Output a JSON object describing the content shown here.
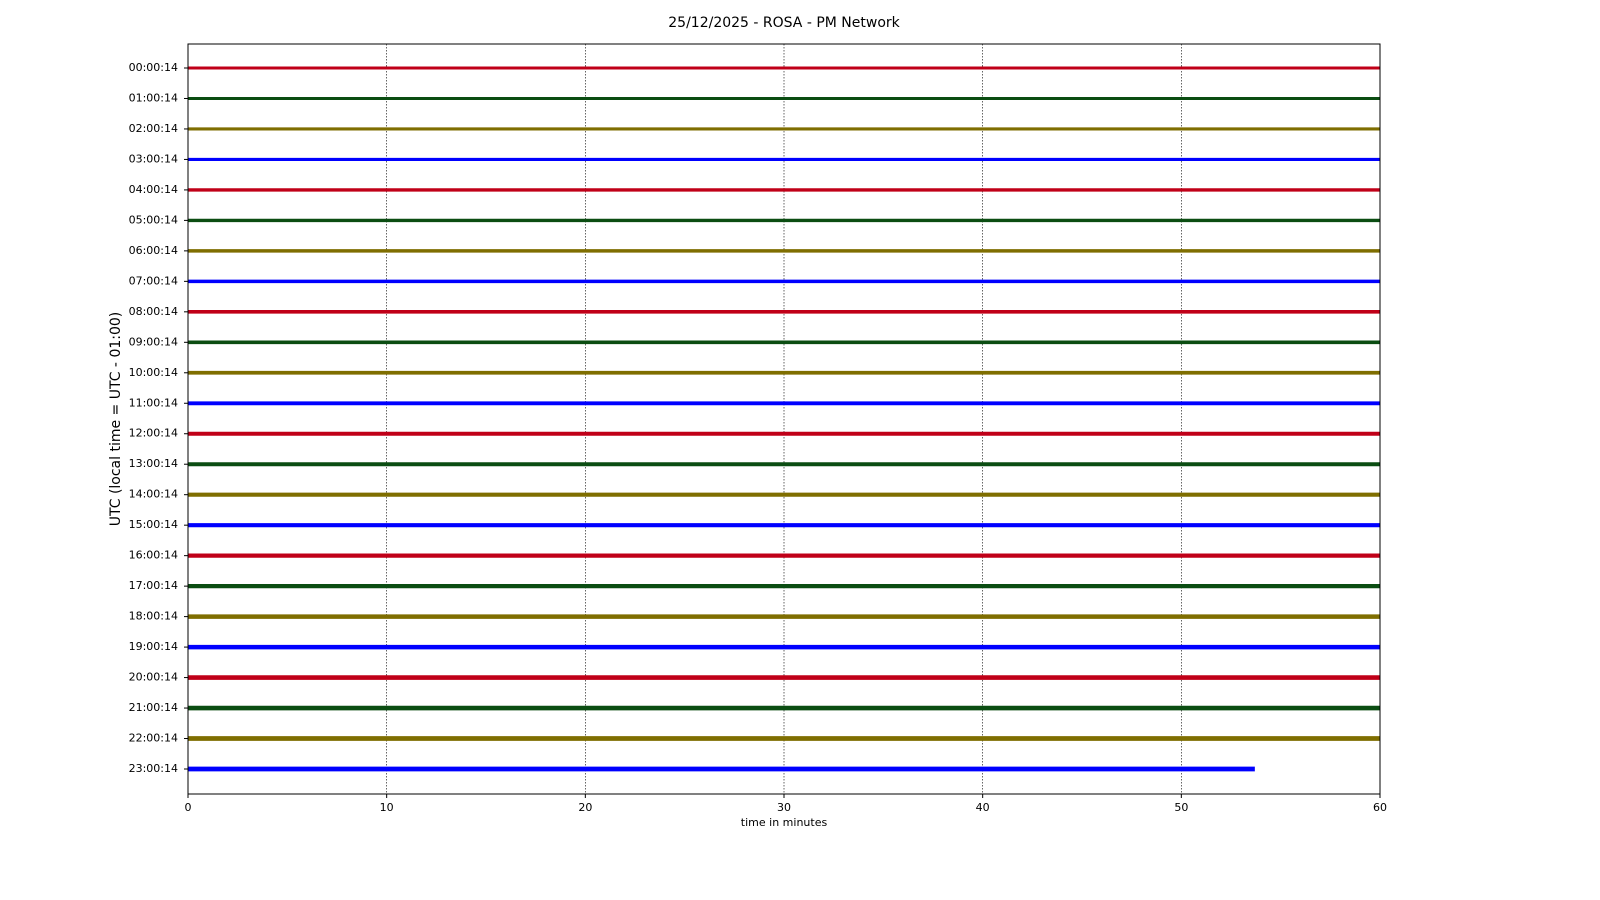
{
  "chart_data": {
    "type": "line",
    "title": "25/12/2025 - ROSA - PM Network",
    "x_label": "time in minutes",
    "y_label": "UTC (local time = UTC - 01:00)",
    "xlim": [
      0,
      60
    ],
    "xticks": [
      0,
      10,
      20,
      30,
      40,
      50,
      60
    ],
    "grid": true,
    "series": [
      {
        "name": "00:00:14",
        "color": "#c00018",
        "x": [
          0,
          60
        ]
      },
      {
        "name": "01:00:14",
        "color": "#0b4d12",
        "x": [
          0,
          60
        ]
      },
      {
        "name": "02:00:14",
        "color": "#7f6e00",
        "x": [
          0,
          60
        ]
      },
      {
        "name": "03:00:14",
        "color": "#0000ff",
        "x": [
          0,
          60
        ]
      },
      {
        "name": "04:00:14",
        "color": "#c00018",
        "x": [
          0,
          60
        ]
      },
      {
        "name": "05:00:14",
        "color": "#0b4d12",
        "x": [
          0,
          60
        ]
      },
      {
        "name": "06:00:14",
        "color": "#7f6e00",
        "x": [
          0,
          60
        ]
      },
      {
        "name": "07:00:14",
        "color": "#0000ff",
        "x": [
          0,
          60
        ]
      },
      {
        "name": "08:00:14",
        "color": "#c00018",
        "x": [
          0,
          60
        ]
      },
      {
        "name": "09:00:14",
        "color": "#0b4d12",
        "x": [
          0,
          60
        ]
      },
      {
        "name": "10:00:14",
        "color": "#7f6e00",
        "x": [
          0,
          60
        ]
      },
      {
        "name": "11:00:14",
        "color": "#0000ff",
        "x": [
          0,
          60
        ]
      },
      {
        "name": "12:00:14",
        "color": "#c00018",
        "x": [
          0,
          60
        ]
      },
      {
        "name": "13:00:14",
        "color": "#0b4d12",
        "x": [
          0,
          60
        ]
      },
      {
        "name": "14:00:14",
        "color": "#7f6e00",
        "x": [
          0,
          60
        ]
      },
      {
        "name": "15:00:14",
        "color": "#0000ff",
        "x": [
          0,
          60
        ]
      },
      {
        "name": "16:00:14",
        "color": "#c00018",
        "x": [
          0,
          60
        ]
      },
      {
        "name": "17:00:14",
        "color": "#0b4d12",
        "x": [
          0,
          60
        ]
      },
      {
        "name": "18:00:14",
        "color": "#7f6e00",
        "x": [
          0,
          60
        ]
      },
      {
        "name": "19:00:14",
        "color": "#0000ff",
        "x": [
          0,
          60
        ]
      },
      {
        "name": "20:00:14",
        "color": "#c00018",
        "x": [
          0,
          60
        ]
      },
      {
        "name": "21:00:14",
        "color": "#0b4d12",
        "x": [
          0,
          60
        ]
      },
      {
        "name": "22:00:14",
        "color": "#7f6e00",
        "x": [
          0,
          60
        ]
      },
      {
        "name": "23:00:14",
        "color": "#0000ff",
        "x": [
          0,
          53.7
        ]
      }
    ]
  }
}
